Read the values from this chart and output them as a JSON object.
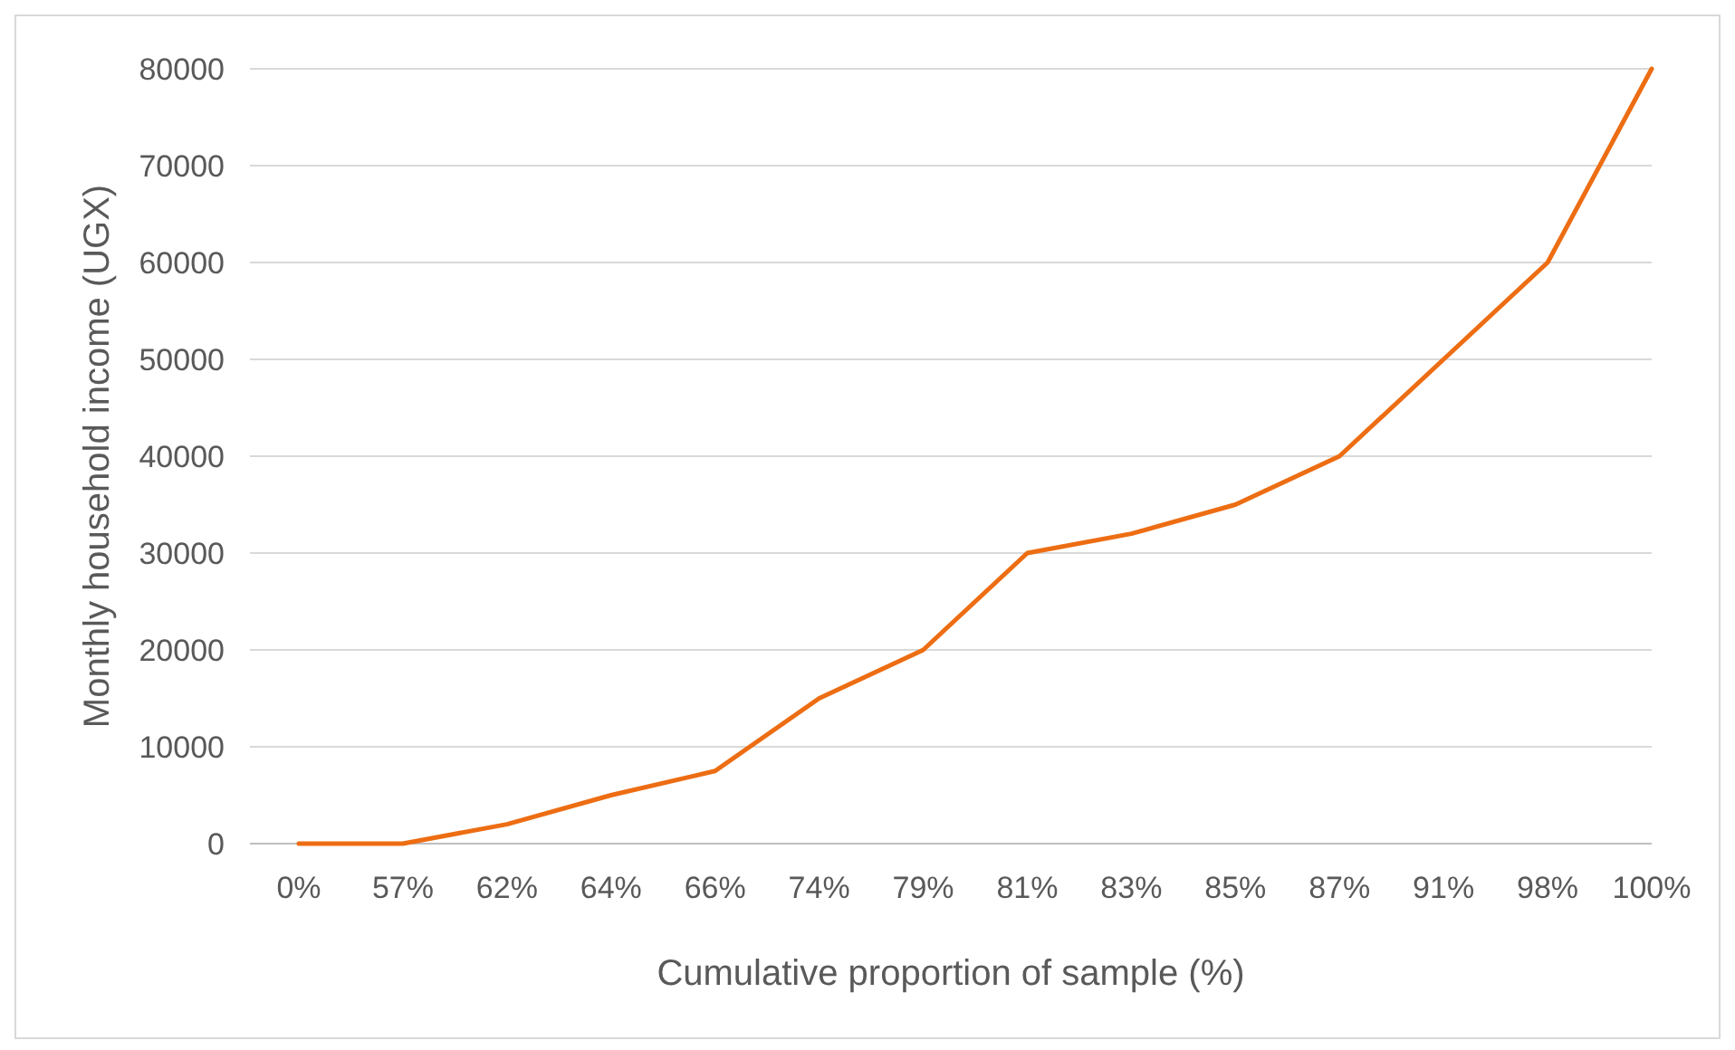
{
  "chart_data": {
    "type": "line",
    "xlabel": "Cumulative proportion of sample (%)",
    "ylabel": "Monthly household income (UGX)",
    "categories": [
      "0%",
      "57%",
      "62%",
      "64%",
      "66%",
      "74%",
      "79%",
      "81%",
      "83%",
      "85%",
      "87%",
      "91%",
      "98%",
      "100%"
    ],
    "series": [
      {
        "color": "#ed6d13",
        "values": [
          0,
          0,
          2000,
          5000,
          7500,
          15000,
          20000,
          30000,
          32000,
          35000,
          40000,
          50000,
          60000,
          80000
        ]
      }
    ],
    "ylim": [
      0,
      80000
    ],
    "yticks": [
      0,
      10000,
      20000,
      30000,
      40000,
      50000,
      60000,
      70000,
      80000
    ],
    "grid": "y",
    "marker": "none",
    "line_style": "solid"
  }
}
